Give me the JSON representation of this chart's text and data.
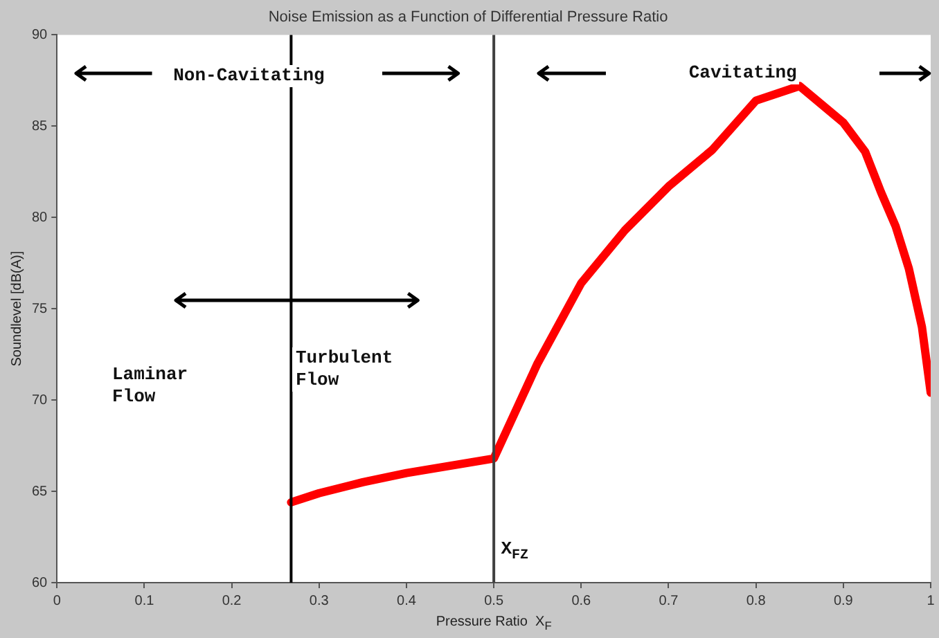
{
  "chart_data": {
    "type": "line",
    "title": "Noise Emission as a Function of Differential Pressure Ratio",
    "xlabel": "Pressure Ratio  X$_{F}$",
    "ylabel": "Soundlevel [dB(A)]",
    "series": [
      {
        "color": "#ff0000",
        "x": [
          0.268,
          0.3,
          0.35,
          0.4,
          0.45,
          0.5,
          0.55,
          0.6,
          0.65,
          0.7,
          0.75,
          0.8,
          0.85,
          0.9,
          0.925,
          0.943,
          0.96,
          0.975,
          0.99,
          1.0
        ],
        "values": [
          64.4,
          64.9,
          65.5,
          66.0,
          66.4,
          66.8,
          72.0,
          76.4,
          79.3,
          81.7,
          83.7,
          86.4,
          87.2,
          85.2,
          83.6,
          81.4,
          79.5,
          77.2,
          74.0,
          70.4
        ]
      }
    ],
    "xlim": [
      0,
      1
    ],
    "xticks": [
      0,
      0.1,
      0.2,
      0.3,
      0.4,
      0.5,
      0.6,
      0.7,
      0.8,
      0.9,
      1
    ],
    "ylim": [
      60,
      90
    ],
    "yticks": [
      60,
      65,
      70,
      75,
      80,
      85,
      90
    ],
    "ref_lines": [
      {
        "axis": "x",
        "value": 0.5,
        "color": "#404040"
      },
      {
        "axis": "x",
        "value": 0.268,
        "color": "#000000"
      }
    ],
    "annotations": [
      "Non-Cavitating",
      "Cavitating",
      "Laminar\nFlow",
      "Turbulent\nFlow",
      "X$_{FZ}$"
    ],
    "grid": false,
    "legend": false,
    "marker": "none",
    "line_style": "solid"
  }
}
